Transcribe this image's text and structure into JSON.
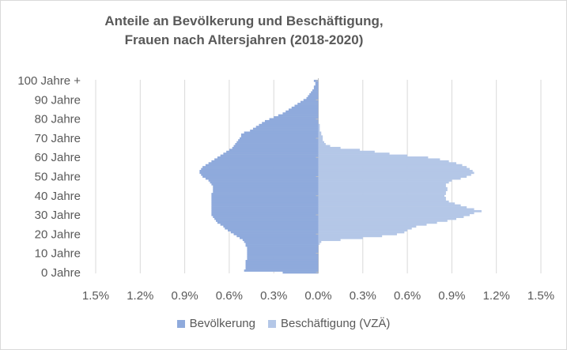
{
  "chart_data": {
    "type": "bar",
    "orientation": "horizontal-pyramid",
    "title_line1": "Anteile an Bevölkerung und Beschäftigung,",
    "title_line2": "Frauen nach Altersjahren (2018-2020)",
    "xlim": [
      -1.5,
      1.5
    ],
    "x_tick_values": [
      -1.5,
      -1.2,
      -0.9,
      -0.6,
      -0.3,
      0.0,
      0.3,
      0.6,
      0.9,
      1.2,
      1.5
    ],
    "x_tick_labels": [
      "1.5%",
      "1.2%",
      "0.9%",
      "0.6%",
      "0.3%",
      "0.0%",
      "0.3%",
      "0.6%",
      "0.9%",
      "1.2%",
      "1.5%"
    ],
    "y_ticks": [
      0,
      10,
      20,
      30,
      40,
      50,
      60,
      70,
      80,
      90,
      100
    ],
    "y_tick_labels": [
      "0 Jahre",
      "10 Jahre",
      "20 Jahre",
      "30 Jahre",
      "40 Jahre",
      "50 Jahre",
      "60 Jahre",
      "70 Jahre",
      "80 Jahre",
      "90 Jahre",
      "100 Jahre +"
    ],
    "grid": "vertical",
    "legend_position": "bottom",
    "ages": [
      0,
      1,
      2,
      3,
      4,
      5,
      6,
      7,
      8,
      9,
      10,
      11,
      12,
      13,
      14,
      15,
      16,
      17,
      18,
      19,
      20,
      21,
      22,
      23,
      24,
      25,
      26,
      27,
      28,
      29,
      30,
      31,
      32,
      33,
      34,
      35,
      36,
      37,
      38,
      39,
      40,
      41,
      42,
      43,
      44,
      45,
      46,
      47,
      48,
      49,
      50,
      51,
      52,
      53,
      54,
      55,
      56,
      57,
      58,
      59,
      60,
      61,
      62,
      63,
      64,
      65,
      66,
      67,
      68,
      69,
      70,
      71,
      72,
      73,
      74,
      75,
      76,
      77,
      78,
      79,
      80,
      81,
      82,
      83,
      84,
      85,
      86,
      87,
      88,
      89,
      90,
      91,
      92,
      93,
      94,
      95,
      96,
      97,
      98,
      99,
      100
    ],
    "series": [
      {
        "name": "Bevölkerung",
        "color": "#8faadc",
        "values": [
          0.24,
          0.5,
          0.49,
          0.49,
          0.49,
          0.49,
          0.49,
          0.48,
          0.48,
          0.48,
          0.48,
          0.48,
          0.48,
          0.48,
          0.49,
          0.49,
          0.5,
          0.51,
          0.53,
          0.55,
          0.57,
          0.59,
          0.61,
          0.63,
          0.64,
          0.66,
          0.68,
          0.69,
          0.7,
          0.71,
          0.72,
          0.72,
          0.72,
          0.72,
          0.72,
          0.72,
          0.72,
          0.72,
          0.72,
          0.72,
          0.72,
          0.72,
          0.71,
          0.71,
          0.71,
          0.71,
          0.72,
          0.73,
          0.74,
          0.76,
          0.78,
          0.79,
          0.8,
          0.8,
          0.79,
          0.78,
          0.76,
          0.74,
          0.72,
          0.7,
          0.68,
          0.66,
          0.64,
          0.62,
          0.6,
          0.58,
          0.57,
          0.56,
          0.55,
          0.54,
          0.53,
          0.52,
          0.52,
          0.5,
          0.46,
          0.44,
          0.42,
          0.4,
          0.38,
          0.36,
          0.33,
          0.3,
          0.27,
          0.24,
          0.22,
          0.2,
          0.18,
          0.16,
          0.14,
          0.12,
          0.1,
          0.08,
          0.07,
          0.06,
          0.05,
          0.04,
          0.03,
          0.03,
          0.02,
          0.02,
          0.03
        ]
      },
      {
        "name": "Beschäftigung (VZÄ)",
        "color": "#b4c7e7",
        "values": [
          0,
          0,
          0,
          0,
          0,
          0,
          0,
          0,
          0,
          0,
          0,
          0,
          0,
          0,
          0,
          0.01,
          0.02,
          0.15,
          0.3,
          0.43,
          0.53,
          0.58,
          0.6,
          0.63,
          0.66,
          0.73,
          0.8,
          0.87,
          0.93,
          0.98,
          1.02,
          1.05,
          1.1,
          1.05,
          1.0,
          0.96,
          0.92,
          0.88,
          0.86,
          0.86,
          0.85,
          0.86,
          0.86,
          0.87,
          0.87,
          0.86,
          0.86,
          0.88,
          0.9,
          0.96,
          1.0,
          1.03,
          1.05,
          1.04,
          1.02,
          1.0,
          0.97,
          0.93,
          0.88,
          0.82,
          0.74,
          0.6,
          0.48,
          0.38,
          0.28,
          0.15,
          0.08,
          0.05,
          0.04,
          0.03,
          0.03,
          0.03,
          0.02,
          0.02,
          0.01,
          0.01,
          0.01,
          0.01,
          0,
          0,
          0,
          0,
          0,
          0,
          0,
          0,
          0,
          0,
          0,
          0,
          0,
          0,
          0,
          0,
          0,
          0,
          0,
          0,
          0,
          0,
          0
        ]
      }
    ]
  }
}
